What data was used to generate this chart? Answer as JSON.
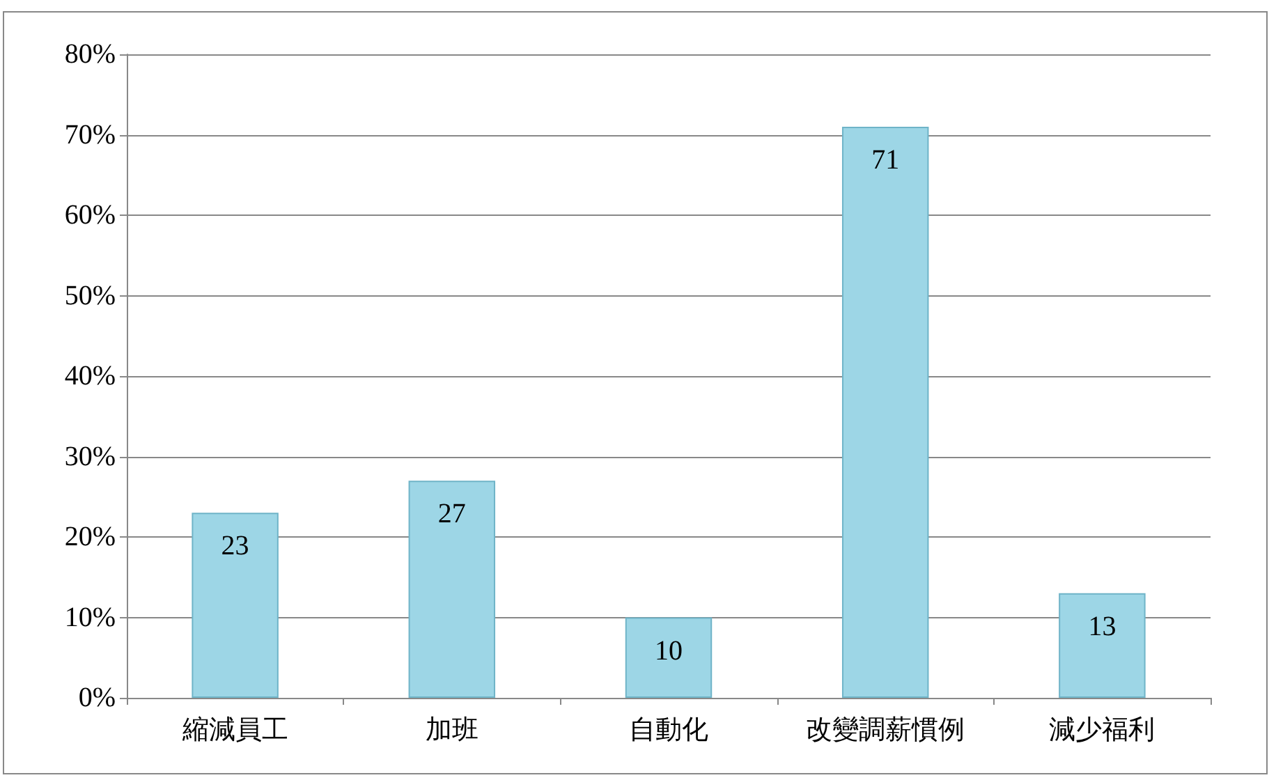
{
  "chart_data": {
    "type": "bar",
    "categories": [
      "縮減員工",
      "加班",
      "自動化",
      "改變調薪慣例",
      "減少福利"
    ],
    "values": [
      23,
      27,
      10,
      71,
      13
    ],
    "color": "#9dd6e6",
    "ylim": [
      0,
      80
    ],
    "yticks": [
      {
        "value": 0,
        "label": "0%"
      },
      {
        "value": 10,
        "label": "10%"
      },
      {
        "value": 20,
        "label": "20%"
      },
      {
        "value": 30,
        "label": "30%"
      },
      {
        "value": 40,
        "label": "40%"
      },
      {
        "value": 50,
        "label": "50%"
      },
      {
        "value": 60,
        "label": "60%"
      },
      {
        "value": 70,
        "label": "70%"
      },
      {
        "value": 80,
        "label": "80%"
      }
    ],
    "grid": "y",
    "data_labels": true
  }
}
